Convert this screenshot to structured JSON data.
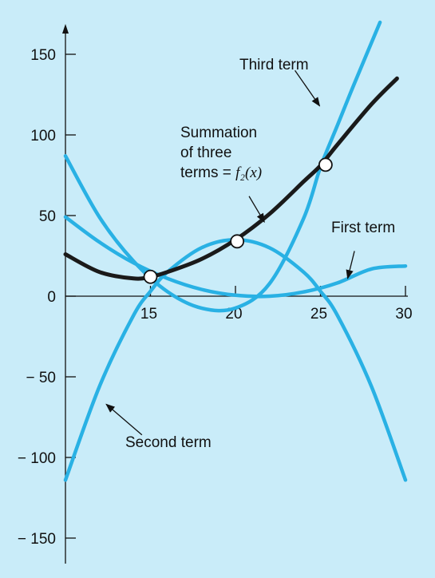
{
  "chart_data": {
    "type": "line",
    "xlim": [
      10,
      30
    ],
    "ylim": [
      -150,
      160
    ],
    "x_ticks": [
      15,
      20,
      25,
      30
    ],
    "y_ticks": [
      150,
      100,
      50,
      0,
      -50,
      -100,
      -150
    ],
    "x_tick_labels": [
      "15",
      "20",
      "25",
      "30"
    ],
    "y_tick_labels": [
      "150",
      "100",
      "50",
      "0",
      "− 50",
      "− 100",
      "− 150"
    ],
    "grid": false,
    "colors": {
      "terms": "#29b1e4",
      "sum": "#1a1a1a",
      "background": "#c9ecf9"
    },
    "series": [
      {
        "name": "First term",
        "x": [
          10,
          12,
          14,
          16,
          18,
          20,
          22,
          24,
          26,
          28,
          30
        ],
        "y": [
          49.1,
          33.5,
          20.7,
          11,
          4.2,
          0.6,
          0,
          2.6,
          8.2,
          16.9,
          18.7
        ]
      },
      {
        "name": "Second term",
        "x": [
          10,
          12,
          14,
          15,
          16,
          18,
          20,
          22,
          24,
          25,
          26,
          28,
          30
        ],
        "y": [
          -114,
          -56,
          -12,
          3,
          15,
          30,
          35,
          30,
          15,
          3,
          -12,
          -56,
          -114
        ]
      },
      {
        "name": "Third term",
        "x": [
          10,
          12,
          14,
          16,
          18,
          20,
          22,
          24,
          25,
          26,
          27,
          28.5
        ],
        "y": [
          87,
          49,
          21.8,
          2.8,
          -7.4,
          -7.4,
          7.7,
          48,
          80,
          106,
          132,
          169.8
        ]
      },
      {
        "name": "Summation of three terms = f2(x)",
        "x": [
          10,
          12,
          14,
          15,
          16,
          18,
          20,
          22,
          24,
          25,
          26,
          28,
          29.5
        ],
        "y": [
          26,
          15,
          11,
          12,
          15,
          23,
          35,
          51,
          71,
          81,
          94,
          119,
          135
        ]
      }
    ],
    "markers": [
      {
        "x": 15,
        "y": 12
      },
      {
        "x": 20.1,
        "y": 34
      },
      {
        "x": 25.3,
        "y": 81.5
      }
    ],
    "annotations": [
      {
        "lines": [
          "Third term"
        ],
        "arrow_from": [
          23.5,
          140
        ],
        "arrow_to": [
          24.95,
          118
        ]
      },
      {
        "lines": [
          "Summation",
          "of three",
          "terms = f₂(x)"
        ],
        "arrow_from": [
          20.8,
          62
        ],
        "arrow_to": [
          21.7,
          46
        ]
      },
      {
        "lines": [
          "First term"
        ],
        "arrow_from": [
          27,
          28
        ],
        "arrow_to": [
          26.6,
          11
        ]
      },
      {
        "lines": [
          "Second term"
        ],
        "arrow_from": [
          14.5,
          -86
        ],
        "arrow_to": [
          12.4,
          -67
        ]
      }
    ]
  }
}
